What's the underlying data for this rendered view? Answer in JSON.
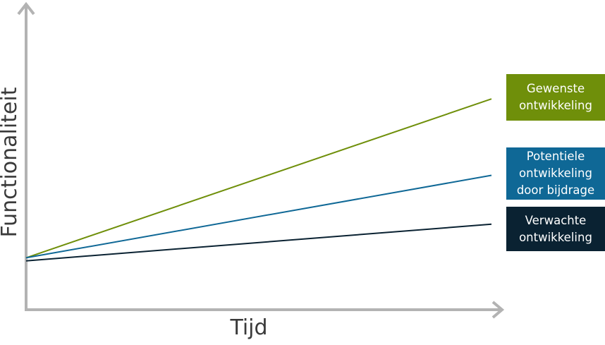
{
  "chart_data": {
    "type": "line",
    "title": "",
    "xlabel": "Tijd",
    "ylabel": "Functionaliteit",
    "x": [
      0,
      1
    ],
    "xlim": [
      0,
      1
    ],
    "ylim": [
      0,
      1
    ],
    "grid": false,
    "legend_placement": "right",
    "series": [
      {
        "name": "Gewenste\nontwikkeling",
        "values": [
          0.17,
          0.69
        ],
        "color": "#6f8f0a"
      },
      {
        "name": "Potentiele\nontwikkeling\ndoor bijdrage",
        "values": [
          0.17,
          0.44
        ],
        "color": "#0f6896"
      },
      {
        "name": "Verwachte\nontwikkeling",
        "values": [
          0.16,
          0.28
        ],
        "color": "#0a2232"
      }
    ]
  }
}
